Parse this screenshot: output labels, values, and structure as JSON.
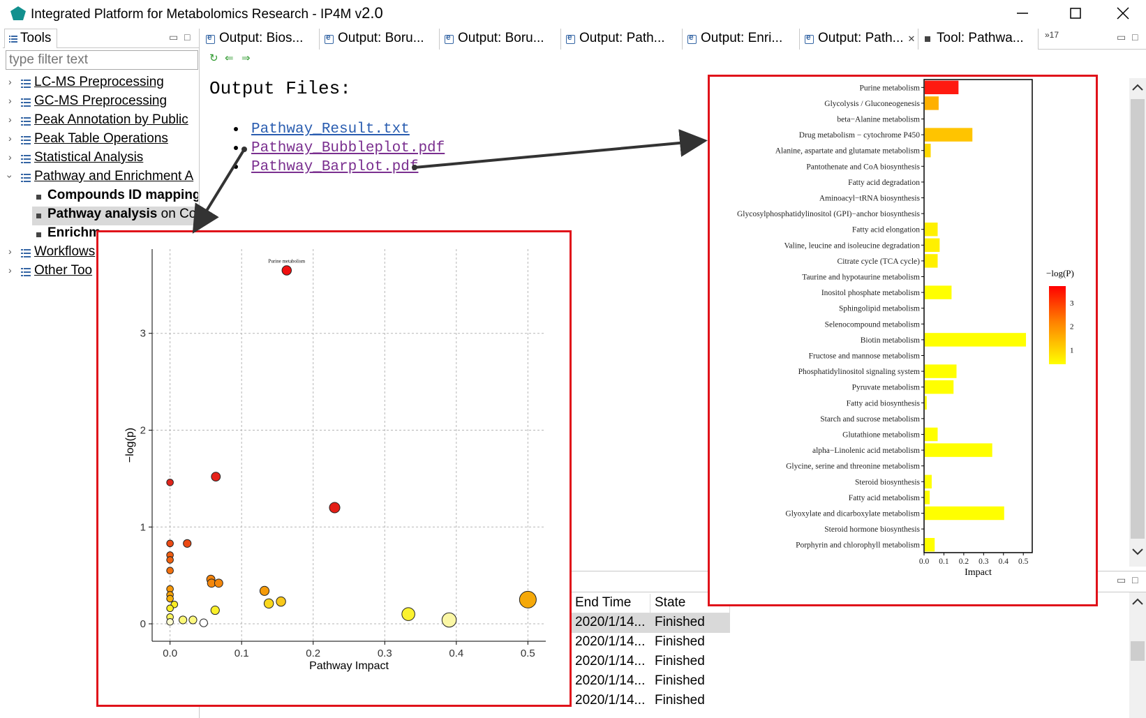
{
  "window": {
    "title": "Integrated Platform for Metabolomics Research - IP4M v",
    "version": "2.0",
    "controls": {
      "minimize_icon": "minimize-icon",
      "maximize_icon": "maximize-icon",
      "close_icon": "close-icon"
    }
  },
  "tools_panel": {
    "tab_label": "Tools",
    "filter_placeholder": "type filter text",
    "items": [
      {
        "label": "LC-MS Preprocessing",
        "expanded": false
      },
      {
        "label": "GC-MS Preprocessing",
        "expanded": false
      },
      {
        "label": "Peak Annotation by Public",
        "expanded": false
      },
      {
        "label": "Peak Table Operations",
        "expanded": false
      },
      {
        "label": "Statistical Analysis",
        "expanded": false
      },
      {
        "label": "Pathway and Enrichment A",
        "expanded": true
      },
      {
        "label": "Workflows",
        "expanded": false
      },
      {
        "label": "Other Too",
        "expanded": false
      }
    ],
    "subitems": [
      {
        "bold": "Compounds ID mapping",
        "rest": ""
      },
      {
        "bold": "Pathway analysis",
        "rest": " on Con"
      },
      {
        "bold": "Enrichm",
        "rest": ""
      }
    ]
  },
  "editor_tabs": [
    {
      "label": "Output: Bios...",
      "icon": "editor-icon"
    },
    {
      "label": "Output: Boru...",
      "icon": "editor-icon"
    },
    {
      "label": "Output: Boru...",
      "icon": "editor-icon"
    },
    {
      "label": "Output: Path...",
      "icon": "editor-icon"
    },
    {
      "label": "Output: Enri...",
      "icon": "editor-icon"
    },
    {
      "label": "Output: Path...",
      "icon": "editor-icon",
      "active": true
    },
    {
      "label": "Tool: Pathwa...",
      "icon": "tool-icon"
    }
  ],
  "editor_overflow": "»17",
  "content": {
    "heading": "Output Files:",
    "files": [
      {
        "name": "Pathway_Result.txt",
        "visited": false
      },
      {
        "name": "Pathway_Bubbleplot.pdf",
        "visited": true
      },
      {
        "name": "Pathway_Barplot.pdf",
        "visited": true
      }
    ]
  },
  "bottom_panel": {
    "columns": [
      "End Time",
      "State"
    ],
    "rows": [
      {
        "end_time": "2020/1/14...",
        "state": "Finished",
        "selected": true
      },
      {
        "end_time": "2020/1/14...",
        "state": "Finished"
      },
      {
        "end_time": "2020/1/14...",
        "state": "Finished"
      },
      {
        "end_time": "2020/1/14...",
        "state": "Finished"
      },
      {
        "end_time": "2020/1/14...",
        "state": "Finished"
      }
    ]
  },
  "chart_data": [
    {
      "type": "scatter",
      "title": "",
      "xlabel": "Pathway Impact",
      "ylabel": "−log(p)",
      "xlim": [
        -0.025,
        0.525
      ],
      "ylim": [
        -0.18,
        3.87
      ],
      "xticks": [
        0.0,
        0.1,
        0.2,
        0.3,
        0.4,
        0.5
      ],
      "yticks": [
        0,
        1,
        2,
        3
      ],
      "grid": true,
      "annotations": [
        {
          "text": "Purine metabolism",
          "x": 0.163,
          "y": 3.7
        }
      ],
      "points": [
        {
          "x": 0.163,
          "y": 3.65,
          "size": 0.17,
          "color": "#f01010"
        },
        {
          "x": 0.23,
          "y": 1.2,
          "size": 0.22,
          "color": "#e41e16"
        },
        {
          "x": 0.064,
          "y": 1.52,
          "size": 0.15,
          "color": "#e6221a"
        },
        {
          "x": 0.0,
          "y": 1.46,
          "size": 0.05,
          "color": "#e0251b"
        },
        {
          "x": 0.024,
          "y": 0.83,
          "size": 0.1,
          "color": "#ec4a14"
        },
        {
          "x": 0.0,
          "y": 0.83,
          "size": 0.05,
          "color": "#ec4a14"
        },
        {
          "x": 0.0,
          "y": 0.71,
          "size": 0.05,
          "color": "#ef5d12"
        },
        {
          "x": 0.0,
          "y": 0.66,
          "size": 0.05,
          "color": "#ef6110"
        },
        {
          "x": 0.0,
          "y": 0.55,
          "size": 0.05,
          "color": "#f2700e"
        },
        {
          "x": 0.057,
          "y": 0.46,
          "size": 0.12,
          "color": "#f4830b"
        },
        {
          "x": 0.058,
          "y": 0.42,
          "size": 0.12,
          "color": "#f4870b"
        },
        {
          "x": 0.068,
          "y": 0.42,
          "size": 0.12,
          "color": "#f4870b"
        },
        {
          "x": 0.0,
          "y": 0.36,
          "size": 0.05,
          "color": "#f6980a"
        },
        {
          "x": 0.132,
          "y": 0.34,
          "size": 0.16,
          "color": "#f59b0a"
        },
        {
          "x": 0.0,
          "y": 0.3,
          "size": 0.05,
          "color": "#f6a208"
        },
        {
          "x": 0.0,
          "y": 0.26,
          "size": 0.05,
          "color": "#f8b007"
        },
        {
          "x": 0.5,
          "y": 0.25,
          "size": 0.5,
          "color": "#f5a90a"
        },
        {
          "x": 0.155,
          "y": 0.23,
          "size": 0.17,
          "color": "#f8c81a"
        },
        {
          "x": 0.138,
          "y": 0.21,
          "size": 0.17,
          "color": "#f9d71c"
        },
        {
          "x": 0.006,
          "y": 0.2,
          "size": 0.05,
          "color": "#faec22"
        },
        {
          "x": 0.0,
          "y": 0.16,
          "size": 0.05,
          "color": "#fbef28"
        },
        {
          "x": 0.063,
          "y": 0.14,
          "size": 0.13,
          "color": "#fbf02a"
        },
        {
          "x": 0.333,
          "y": 0.1,
          "size": 0.33,
          "color": "#fbf230"
        },
        {
          "x": 0.0,
          "y": 0.07,
          "size": 0.05,
          "color": "#fcf660"
        },
        {
          "x": 0.018,
          "y": 0.04,
          "size": 0.1,
          "color": "#fcf878"
        },
        {
          "x": 0.032,
          "y": 0.04,
          "size": 0.1,
          "color": "#fcf880"
        },
        {
          "x": 0.39,
          "y": 0.04,
          "size": 0.39,
          "color": "#fbf7a5"
        },
        {
          "x": 0.0,
          "y": 0.02,
          "size": 0.05,
          "color": "#fdfbd0"
        },
        {
          "x": 0.047,
          "y": 0.01,
          "size": 0.1,
          "color": "#ffffff"
        }
      ]
    },
    {
      "type": "bar",
      "orientation": "horizontal",
      "title": "",
      "xlabel": "Impact",
      "ylabel": "",
      "xlim": [
        0.0,
        0.545
      ],
      "xticks": [
        0.0,
        0.1,
        0.2,
        0.3,
        0.4,
        0.5
      ],
      "legend": {
        "title": "−log(P)",
        "ticks": [
          1,
          2,
          3
        ],
        "placement": "right",
        "colors": [
          "#ffff00",
          "#ff7f00",
          "#ff0000"
        ]
      },
      "categories": [
        "Purine metabolism",
        "Glycolysis / Gluconeogenesis",
        "beta−Alanine metabolism",
        "Drug metabolism − cytochrome P450",
        "Alanine, aspartate and glutamate metabolism",
        "Pantothenate and CoA biosynthesis",
        "Fatty acid degradation",
        "Aminoacyl−tRNA biosynthesis",
        "Glycosylphosphatidylinositol (GPI)−anchor biosynthesis",
        "Fatty acid elongation",
        "Valine, leucine and isoleucine degradation",
        "Citrate cycle (TCA cycle)",
        "Taurine and hypotaurine metabolism",
        "Inositol phosphate metabolism",
        "Sphingolipid metabolism",
        "Selenocompound metabolism",
        "Biotin metabolism",
        "Fructose and mannose metabolism",
        "Phosphatidylinositol signaling system",
        "Pyruvate metabolism",
        "Fatty acid biosynthesis",
        "Starch and sucrose metabolism",
        "Glutathione metabolism",
        "alpha−Linolenic acid metabolism",
        "Glycine, serine and threonine metabolism",
        "Steroid biosynthesis",
        "Fatty acid metabolism",
        "Glyoxylate and dicarboxylate metabolism",
        "Steroid hormone biosynthesis",
        "Porphyrin and chlorophyll metabolism"
      ],
      "values": [
        0.17,
        0.07,
        0.0,
        0.24,
        0.03,
        0.0,
        0.0,
        0.0,
        0.0,
        0.065,
        0.075,
        0.065,
        0.0,
        0.135,
        0.0,
        0.0,
        0.51,
        0.0,
        0.16,
        0.145,
        0.01,
        0.0,
        0.065,
        0.34,
        0.0,
        0.035,
        0.025,
        0.4,
        0.0,
        0.05
      ],
      "colors": [
        "#ff1a10",
        "#ffb000",
        "#ffffff",
        "#ffc400",
        "#ffd800",
        "#ffffff",
        "#ffffff",
        "#ffffff",
        "#ffffff",
        "#fff000",
        "#fff000",
        "#fff000",
        "#ffffff",
        "#ffff00",
        "#ffffff",
        "#ffffff",
        "#ffff00",
        "#ffffff",
        "#ffff00",
        "#ffff00",
        "#ffff00",
        "#ffffff",
        "#ffff00",
        "#ffff00",
        "#ffffff",
        "#ffff00",
        "#ffff00",
        "#ffff00",
        "#ffffff",
        "#ffff00"
      ]
    }
  ]
}
